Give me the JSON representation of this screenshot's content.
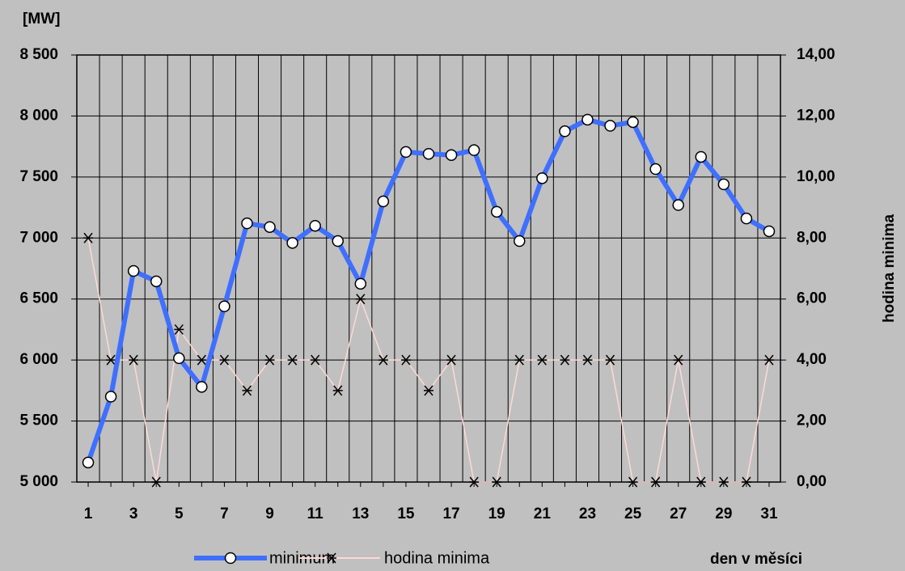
{
  "chart_data": {
    "type": "line",
    "ylabel": "[MW]",
    "y2label": "hodina minima",
    "xlabel": "den v měsíci",
    "categories": [
      1,
      null,
      3,
      null,
      5,
      null,
      7,
      null,
      9,
      null,
      11,
      null,
      13,
      null,
      15,
      null,
      17,
      null,
      19,
      null,
      21,
      null,
      23,
      null,
      25,
      null,
      27,
      null,
      29,
      null,
      31
    ],
    "ylim": [
      5000,
      8500
    ],
    "yticks": [
      {
        "value": 5000,
        "label": "5 000"
      },
      {
        "value": 5500,
        "label": "5 500"
      },
      {
        "value": 6000,
        "label": "6 000"
      },
      {
        "value": 6500,
        "label": "6 500"
      },
      {
        "value": 7000,
        "label": "7 000"
      },
      {
        "value": 7500,
        "label": "7 500"
      },
      {
        "value": 8000,
        "label": "8 000"
      },
      {
        "value": 8500,
        "label": "8 500"
      }
    ],
    "y2lim": [
      0,
      14
    ],
    "y2ticks": [
      {
        "value": 0,
        "label": "0,00"
      },
      {
        "value": 2,
        "label": "2,00"
      },
      {
        "value": 4,
        "label": "4,00"
      },
      {
        "value": 6,
        "label": "6,00"
      },
      {
        "value": 8,
        "label": "8,00"
      },
      {
        "value": 10,
        "label": "10,00"
      },
      {
        "value": 12,
        "label": "12,00"
      },
      {
        "value": 14,
        "label": "14,00"
      }
    ],
    "grid": true,
    "series": [
      {
        "name": "minimum",
        "color": "#3f6fff",
        "marker": "circle",
        "values": [
          5160,
          5700,
          6730,
          6645,
          6015,
          5780,
          6440,
          7120,
          7090,
          6960,
          7100,
          6975,
          6625,
          7300,
          7705,
          7690,
          7680,
          7720,
          7215,
          6975,
          7490,
          7875,
          7970,
          7920,
          7950,
          7565,
          7270,
          7665,
          7440,
          7160,
          7055
        ]
      },
      {
        "name": "hodina minima",
        "color": "#ffd8d8",
        "marker": "asterisk",
        "axis": "y2",
        "values": [
          8,
          4,
          4,
          0,
          5,
          4,
          4,
          3,
          4,
          4,
          4,
          3,
          6,
          4,
          4,
          3,
          4,
          0,
          0,
          4,
          4,
          4,
          4,
          4,
          0,
          0,
          4,
          0,
          0,
          0,
          4
        ]
      }
    ]
  }
}
